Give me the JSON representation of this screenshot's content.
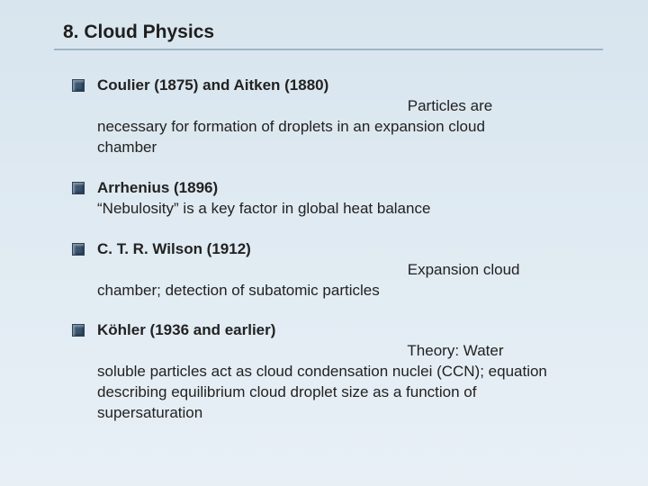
{
  "title": "8. Cloud Physics",
  "items": [
    {
      "lead": "Coulier (1875) and Aitken (1880)",
      "body": "Particles are necessary for formation of droplets in an expansion cloud chamber"
    },
    {
      "lead": "Arrhenius (1896)",
      "body": "“Nebulosity” is a key factor in global heat balance"
    },
    {
      "lead": "C. T. R. Wilson (1912)",
      "body": "Expansion cloud chamber; detection of subatomic particles"
    },
    {
      "lead": "Köhler (1936 and earlier)",
      "body": "Theory: Water soluble particles act as cloud condensation nuclei (CCN); equation describing equilibrium cloud droplet size as a function of supersaturation"
    }
  ],
  "colors": {
    "bg_top": "#d8e5ee",
    "bg_bottom": "#e8f0f6",
    "bullet": "#3b5570",
    "underline": "#9cb7c9",
    "text": "#222222"
  }
}
